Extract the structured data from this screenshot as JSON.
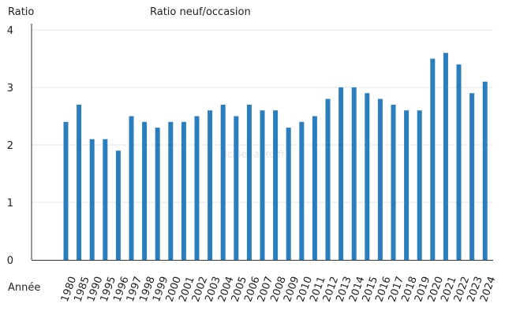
{
  "chart_data": {
    "type": "bar",
    "title": "Ratio neuf/occasion",
    "ylabel": "Ratio",
    "xlabel": "Année",
    "watermark": "Fichier-auto.fr",
    "ylim": [
      0,
      4
    ],
    "yticks": [
      0,
      1,
      2,
      3,
      4
    ],
    "grid": true,
    "bar_color": "#2a7ebd",
    "categories": [
      "1980",
      "1985",
      "1990",
      "1995",
      "1996",
      "1997",
      "1998",
      "1999",
      "2000",
      "2001",
      "2002",
      "2003",
      "2004",
      "2005",
      "2006",
      "2007",
      "2008",
      "2009",
      "2010",
      "2011",
      "2012",
      "2013",
      "2014",
      "2015",
      "2016",
      "2017",
      "2018",
      "2019",
      "2020",
      "2021",
      "2022",
      "2023",
      "2024"
    ],
    "values": [
      2.4,
      2.7,
      2.1,
      2.1,
      1.9,
      2.5,
      2.4,
      2.3,
      2.4,
      2.4,
      2.5,
      2.6,
      2.7,
      2.5,
      2.7,
      2.6,
      2.6,
      2.3,
      2.4,
      2.5,
      2.8,
      3.0,
      3.0,
      2.9,
      2.8,
      2.7,
      2.6,
      2.6,
      3.5,
      3.6,
      3.4,
      2.9,
      3.1
    ]
  }
}
